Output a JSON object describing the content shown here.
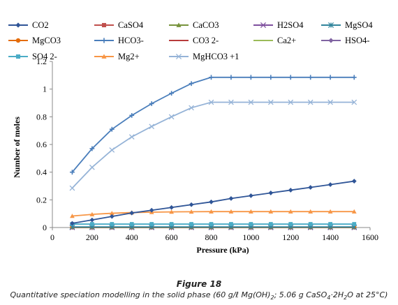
{
  "figure": {
    "label": "Figure 18",
    "caption_parts": {
      "a": "Quantitative speciation modelling in the solid phase (60 g/ℓ Mg(OH)",
      "b": "2",
      "c": "; 5.06 g CaSO",
      "d": "4",
      "e": "·2H",
      "f": "2",
      "g": "O at 25°C)"
    }
  },
  "chart_data": {
    "type": "line",
    "title": "",
    "xlabel": "Pressure (kPa)",
    "ylabel": "Number of moles",
    "xlim": [
      0,
      1600
    ],
    "ylim": [
      0,
      1.2
    ],
    "xticks": [
      0,
      200,
      400,
      600,
      800,
      1000,
      1200,
      1400,
      1600
    ],
    "yticks": [
      0,
      0.2,
      0.4,
      0.6,
      0.8,
      1,
      1.2
    ],
    "grid": false,
    "legend_position": "top",
    "x": [
      100,
      200,
      300,
      400,
      500,
      600,
      700,
      800,
      900,
      1000,
      1100,
      1200,
      1300,
      1400,
      1520
    ],
    "series": [
      {
        "name": "CO2",
        "color": "#2f5597",
        "marker": "diamond",
        "values": [
          0.03,
          0.055,
          0.08,
          0.105,
          0.125,
          0.145,
          0.165,
          0.185,
          0.21,
          0.23,
          0.25,
          0.27,
          0.29,
          0.31,
          0.335
        ]
      },
      {
        "name": "CaSO4",
        "color": "#c0504d",
        "marker": "square",
        "values": [
          0.002,
          0.002,
          0.002,
          0.002,
          0.002,
          0.002,
          0.002,
          0.002,
          0.002,
          0.002,
          0.002,
          0.002,
          0.002,
          0.002,
          0.002
        ]
      },
      {
        "name": "CaCO3",
        "color": "#77933c",
        "marker": "triangle",
        "values": [
          0.001,
          0.001,
          0.001,
          0.001,
          0.001,
          0.001,
          0.001,
          0.001,
          0.001,
          0.001,
          0.001,
          0.001,
          0.001,
          0.001,
          0.001
        ]
      },
      {
        "name": "H2SO4",
        "color": "#7e4f9e",
        "marker": "x",
        "values": [
          0,
          0,
          0,
          0,
          0,
          0,
          0,
          0,
          0,
          0,
          0,
          0,
          0,
          0,
          0
        ]
      },
      {
        "name": "MgSO4",
        "color": "#31859c",
        "marker": "star",
        "values": [
          0.004,
          0.004,
          0.004,
          0.004,
          0.004,
          0.004,
          0.004,
          0.004,
          0.004,
          0.004,
          0.004,
          0.004,
          0.004,
          0.004,
          0.004
        ]
      },
      {
        "name": "MgCO3",
        "color": "#e46c0a",
        "marker": "circle",
        "values": [
          0.003,
          0.003,
          0.003,
          0.003,
          0.003,
          0.003,
          0.003,
          0.003,
          0.003,
          0.003,
          0.003,
          0.003,
          0.003,
          0.003,
          0.003
        ]
      },
      {
        "name": "HCO3-",
        "color": "#4a7ebb",
        "marker": "plus",
        "values": [
          0.4,
          0.57,
          0.71,
          0.81,
          0.895,
          0.97,
          1.04,
          1.085,
          1.085,
          1.085,
          1.085,
          1.085,
          1.085,
          1.085,
          1.085
        ]
      },
      {
        "name": "CO3 2-",
        "color": "#b83b3b",
        "marker": "dash",
        "values": [
          0.001,
          0.001,
          0.001,
          0.001,
          0.001,
          0.001,
          0.001,
          0.001,
          0.001,
          0.001,
          0.001,
          0.001,
          0.001,
          0.001,
          0.001
        ]
      },
      {
        "name": "Ca2+",
        "color": "#9bbb59",
        "marker": "dash",
        "values": [
          0.002,
          0.002,
          0.002,
          0.002,
          0.002,
          0.002,
          0.002,
          0.002,
          0.002,
          0.002,
          0.002,
          0.002,
          0.002,
          0.002,
          0.002
        ]
      },
      {
        "name": "HSO4-",
        "color": "#8064a2",
        "marker": "diamond",
        "values": [
          0,
          0,
          0,
          0,
          0,
          0,
          0,
          0,
          0,
          0,
          0,
          0,
          0,
          0,
          0
        ]
      },
      {
        "name": "SO4 2-",
        "color": "#4bacc6",
        "marker": "square",
        "values": [
          0.025,
          0.025,
          0.025,
          0.025,
          0.025,
          0.025,
          0.025,
          0.025,
          0.025,
          0.025,
          0.025,
          0.025,
          0.025,
          0.025,
          0.025
        ]
      },
      {
        "name": "Mg2+",
        "color": "#f79646",
        "marker": "triangle",
        "values": [
          0.083,
          0.095,
          0.103,
          0.108,
          0.111,
          0.113,
          0.114,
          0.115,
          0.115,
          0.115,
          0.115,
          0.115,
          0.115,
          0.115,
          0.115
        ]
      },
      {
        "name": "MgHCO3 +1",
        "color": "#95b3d7",
        "marker": "x",
        "values": [
          0.285,
          0.435,
          0.56,
          0.655,
          0.73,
          0.8,
          0.865,
          0.905,
          0.905,
          0.905,
          0.905,
          0.905,
          0.905,
          0.905,
          0.905
        ]
      }
    ]
  }
}
